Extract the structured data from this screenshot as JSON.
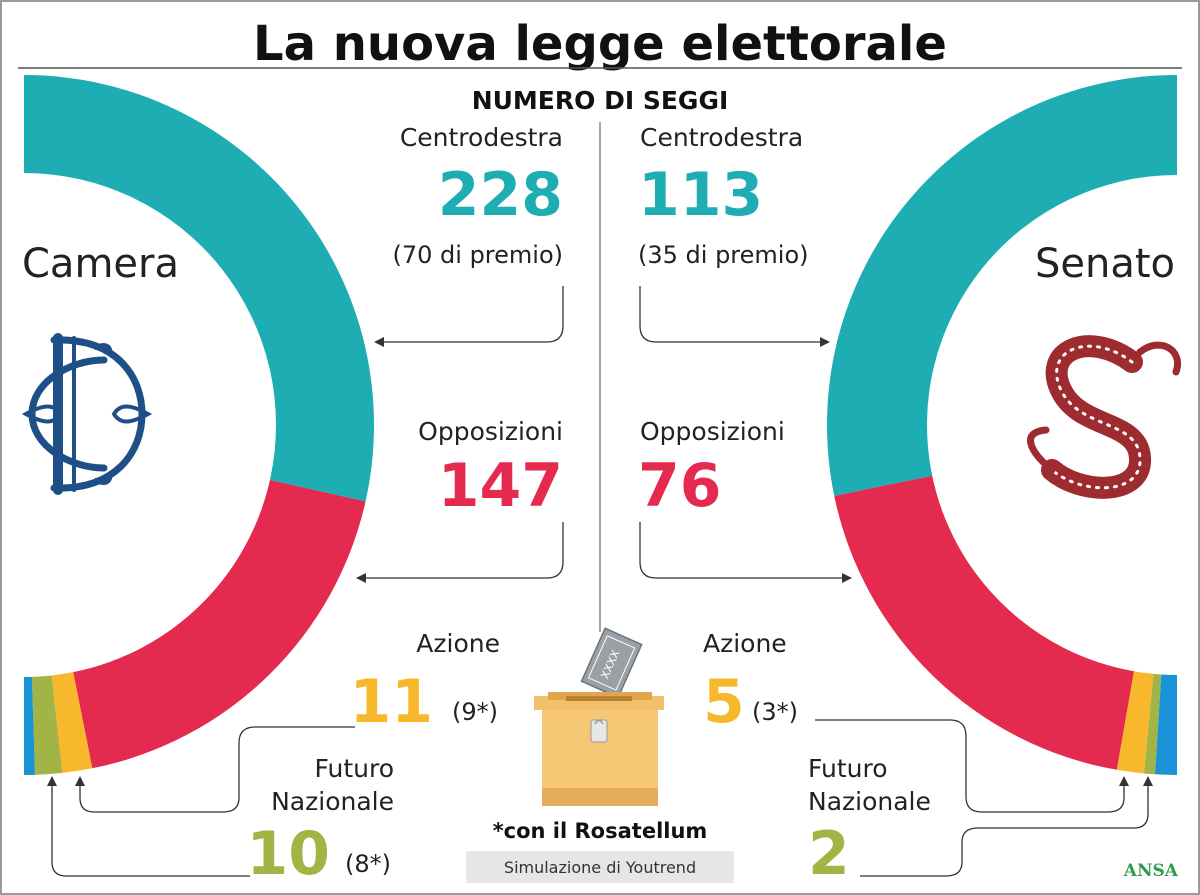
{
  "title": "La nuova legge elettorale",
  "subtitle": "NUMERO DI SEGGI",
  "camera_label": "Camera",
  "senato_label": "Senato",
  "footnote": "*con il Rosatellum",
  "source": "Simulazione di Youtrend",
  "credit": "ANSA",
  "ballot_text": "XXXX",
  "colors": {
    "centrodestra": "#1eadb3",
    "opposizioni": "#e52a4f",
    "azione": "#f7b92b",
    "futuro_nazionale": "#a2b445",
    "other": "#1a93d6",
    "camera_logo": "#1f4f87",
    "senato_logo": "#9e2b2f"
  },
  "camera": {
    "centrodestra": {
      "label": "Centrodestra",
      "value": "228",
      "note": "(70 di premio)"
    },
    "opposizioni": {
      "label": "Opposizioni",
      "value": "147"
    },
    "azione": {
      "label": "Azione",
      "value": "11",
      "note": "(9*)"
    },
    "futuro_nazionale": {
      "label_line1": "Futuro",
      "label_line2": "Nazionale",
      "value": "10",
      "note": "(8*)"
    }
  },
  "senato": {
    "centrodestra": {
      "label": "Centrodestra",
      "value": "113",
      "note": "(35 di premio)"
    },
    "opposizioni": {
      "label": "Opposizioni",
      "value": "76"
    },
    "azione": {
      "label": "Azione",
      "value": "5",
      "note": "(3*)"
    },
    "futuro_nazionale": {
      "label_line1": "Futuro",
      "label_line2": "Nazionale",
      "value": "2"
    }
  },
  "chart_data": [
    {
      "type": "pie",
      "title": "Camera",
      "categories": [
        "Centrodestra",
        "Opposizioni",
        "Azione",
        "Futuro Nazionale",
        ""
      ],
      "values": [
        228,
        147,
        11,
        10,
        4
      ]
    },
    {
      "type": "pie",
      "title": "Senato",
      "categories": [
        "Centrodestra",
        "Opposizioni",
        "Azione",
        "Futuro Nazionale",
        ""
      ],
      "values": [
        113,
        76,
        5,
        2,
        4
      ]
    }
  ]
}
